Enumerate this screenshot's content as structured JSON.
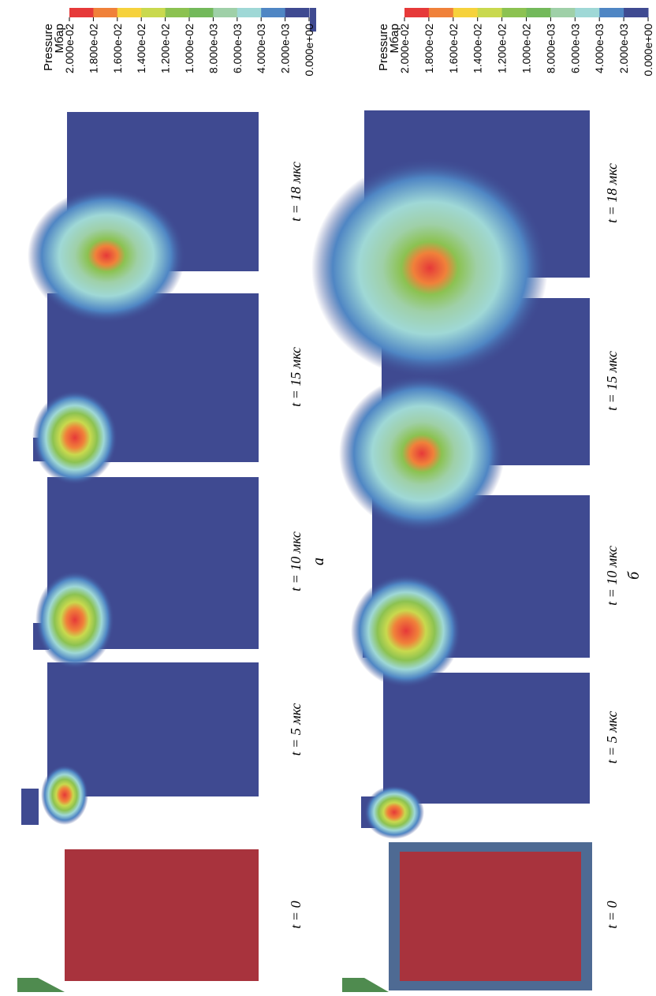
{
  "figure": {
    "rows": [
      {
        "panel_label": "а",
        "frames": [
          {
            "time_label": "t = 0",
            "state": "initial"
          },
          {
            "time_label": "t = 5 мкс",
            "state": "shock"
          },
          {
            "time_label": "t = 10 мкс",
            "state": "shock"
          },
          {
            "time_label": "t = 15 мкс",
            "state": "shock"
          },
          {
            "time_label": "t = 18 мкс",
            "state": "shock"
          }
        ],
        "legend": {
          "title": "Pressure",
          "unit": "Мбар",
          "ticks": [
            "2.000e-02",
            "1.800e-02",
            "1.600e-02",
            "1.400e-02",
            "1.200e-02",
            "1.000e-02",
            "8.000e-03",
            "6.000e-03",
            "4.000e-03",
            "2.000e-03",
            "0.000e+00"
          ]
        }
      },
      {
        "panel_label": "б",
        "frames": [
          {
            "time_label": "t = 0",
            "state": "initial-shell"
          },
          {
            "time_label": "t = 5 мкс",
            "state": "shock"
          },
          {
            "time_label": "t = 10 мкс",
            "state": "shock"
          },
          {
            "time_label": "t = 15 мкс",
            "state": "shock"
          },
          {
            "time_label": "t = 18 мкс",
            "state": "shock"
          }
        ],
        "legend": {
          "title": "Pressure",
          "unit": "Мбар",
          "ticks": [
            "2.000e-02",
            "1.800e-02",
            "1.600e-02",
            "1.400e-02",
            "1.200e-02",
            "1.000e-02",
            "8.000e-03",
            "6.000e-03",
            "4.000e-03",
            "2.000e-03",
            "0.000e+00"
          ]
        }
      }
    ],
    "colors": {
      "colormap": [
        "#e63939",
        "#f0813a",
        "#f6d23c",
        "#c9d94e",
        "#8cc251",
        "#73b95b",
        "#9fd0a8",
        "#9fd8d6",
        "#4f86c4",
        "#3f4a91"
      ],
      "background": "#3f4a91",
      "initial_fill": "#a8333d",
      "shell": "#4e6a93",
      "striker": "#4f8b4f"
    }
  }
}
